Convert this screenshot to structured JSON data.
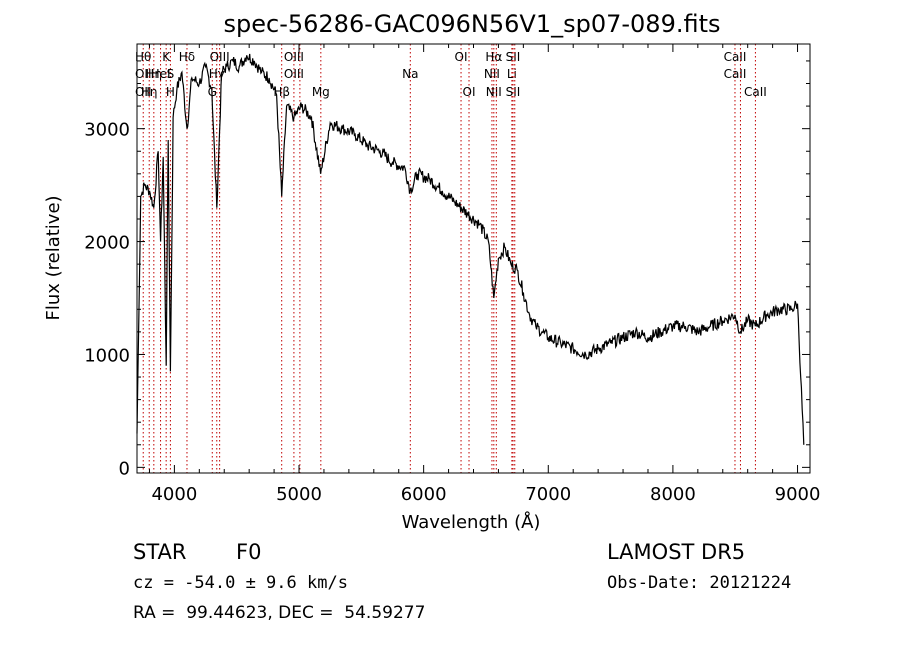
{
  "chart_data": {
    "type": "line",
    "title": "spec-56286-GAC096N56V1_sp07-089.fits",
    "xlabel": "Wavelength (Å)",
    "ylabel": "Flux (relative)",
    "xlim": [
      3700,
      9100
    ],
    "ylim": [
      -50,
      3750
    ],
    "xticks": [
      4000,
      5000,
      6000,
      7000,
      8000,
      9000
    ],
    "yticks": [
      0,
      1000,
      2000,
      3000
    ],
    "xtick_labels": [
      "4000",
      "5000",
      "6000",
      "7000",
      "8000",
      "9000"
    ],
    "ytick_labels": [
      "0",
      "1000",
      "2000",
      "3000"
    ],
    "series": [
      {
        "x": [
          3700,
          3730,
          3760,
          3800,
          3835,
          3870,
          3889,
          3910,
          3934,
          3950,
          3968,
          3990,
          4020,
          4060,
          4101,
          4140,
          4200,
          4250,
          4300,
          4340,
          4380,
          4420,
          4470,
          4520,
          4580,
          4640,
          4700,
          4760,
          4820,
          4861,
          4900,
          4960,
          5020,
          5100,
          5173,
          5250,
          5350,
          5450,
          5550,
          5650,
          5750,
          5850,
          5893,
          5950,
          6050,
          6150,
          6250,
          6350,
          6450,
          6520,
          6563,
          6600,
          6650,
          6700,
          6750,
          6800,
          6850,
          6900,
          6950,
          7000,
          7100,
          7200,
          7300,
          7400,
          7500,
          7600,
          7700,
          7800,
          7900,
          8000,
          8100,
          8200,
          8300,
          8400,
          8498,
          8542,
          8600,
          8662,
          8750,
          8850,
          8950,
          9000,
          9050
        ],
        "y": [
          300,
          2400,
          2500,
          2450,
          2300,
          2800,
          2000,
          2750,
          900,
          2900,
          850,
          3100,
          3350,
          3500,
          3000,
          3450,
          3400,
          3550,
          3350,
          2300,
          3500,
          3550,
          3600,
          3550,
          3650,
          3600,
          3500,
          3450,
          3300,
          2400,
          3200,
          3100,
          3200,
          3100,
          2600,
          3050,
          3000,
          2950,
          2850,
          2800,
          2700,
          2650,
          2450,
          2600,
          2550,
          2450,
          2350,
          2250,
          2150,
          2000,
          1500,
          1850,
          1950,
          1800,
          1750,
          1550,
          1350,
          1250,
          1200,
          1150,
          1100,
          1050,
          1000,
          1050,
          1100,
          1150,
          1200,
          1150,
          1200,
          1250,
          1250,
          1200,
          1250,
          1300,
          1350,
          1200,
          1300,
          1250,
          1350,
          1400,
          1400,
          1450,
          200
        ]
      }
    ],
    "line_marks": [
      {
        "wl": 3750,
        "labels": [
          "Hθ",
          "OII",
          "OII"
        ]
      },
      {
        "wl": 3798,
        "labels": [
          "",
          "",
          "Hη"
        ]
      },
      {
        "wl": 3835,
        "labels": [
          "",
          "Hη",
          ""
        ]
      },
      {
        "wl": 3889,
        "labels": [
          "",
          "HeI",
          ""
        ]
      },
      {
        "wl": 3934,
        "labels": [
          "K",
          "",
          ""
        ]
      },
      {
        "wl": 3968,
        "labels": [
          "",
          "S",
          "H"
        ]
      },
      {
        "wl": 4101,
        "labels": [
          "Hδ",
          "",
          ""
        ]
      },
      {
        "wl": 4304,
        "labels": [
          "",
          "",
          "G"
        ]
      },
      {
        "wl": 4340,
        "labels": [
          "",
          "Hγ",
          ""
        ]
      },
      {
        "wl": 4363,
        "labels": [
          "OIII",
          "",
          ""
        ]
      },
      {
        "wl": 4861,
        "labels": [
          "",
          "",
          "Hβ"
        ]
      },
      {
        "wl": 4959,
        "labels": [
          "OIII",
          "OIII",
          ""
        ]
      },
      {
        "wl": 5007,
        "labels": [
          "",
          "",
          ""
        ]
      },
      {
        "wl": 5175,
        "labels": [
          "",
          "",
          "Mg"
        ]
      },
      {
        "wl": 5893,
        "labels": [
          "",
          "Na",
          ""
        ]
      },
      {
        "wl": 6300,
        "labels": [
          "OI",
          "",
          ""
        ]
      },
      {
        "wl": 6364,
        "labels": [
          "",
          "",
          "OI"
        ]
      },
      {
        "wl": 6548,
        "labels": [
          "",
          "NII",
          ""
        ]
      },
      {
        "wl": 6563,
        "labels": [
          "Hα",
          "",
          "NII"
        ]
      },
      {
        "wl": 6583,
        "labels": [
          "",
          "",
          ""
        ]
      },
      {
        "wl": 6708,
        "labels": [
          "",
          "Li",
          ""
        ]
      },
      {
        "wl": 6717,
        "labels": [
          "SII",
          "",
          "SII"
        ]
      },
      {
        "wl": 6731,
        "labels": [
          "",
          "",
          ""
        ]
      },
      {
        "wl": 8498,
        "labels": [
          "CaII",
          "CaII",
          ""
        ]
      },
      {
        "wl": 8542,
        "labels": [
          "",
          "",
          ""
        ]
      },
      {
        "wl": 8662,
        "labels": [
          "",
          "",
          "CaII"
        ]
      }
    ]
  },
  "info": {
    "class": "STAR",
    "subclass": "F0",
    "survey": "LAMOST DR5",
    "cz": "cz = -54.0 ± 9.6 km/s",
    "obs_date": "Obs-Date: 20121224",
    "coords": "RA =  99.44623, DEC =  54.59277"
  }
}
